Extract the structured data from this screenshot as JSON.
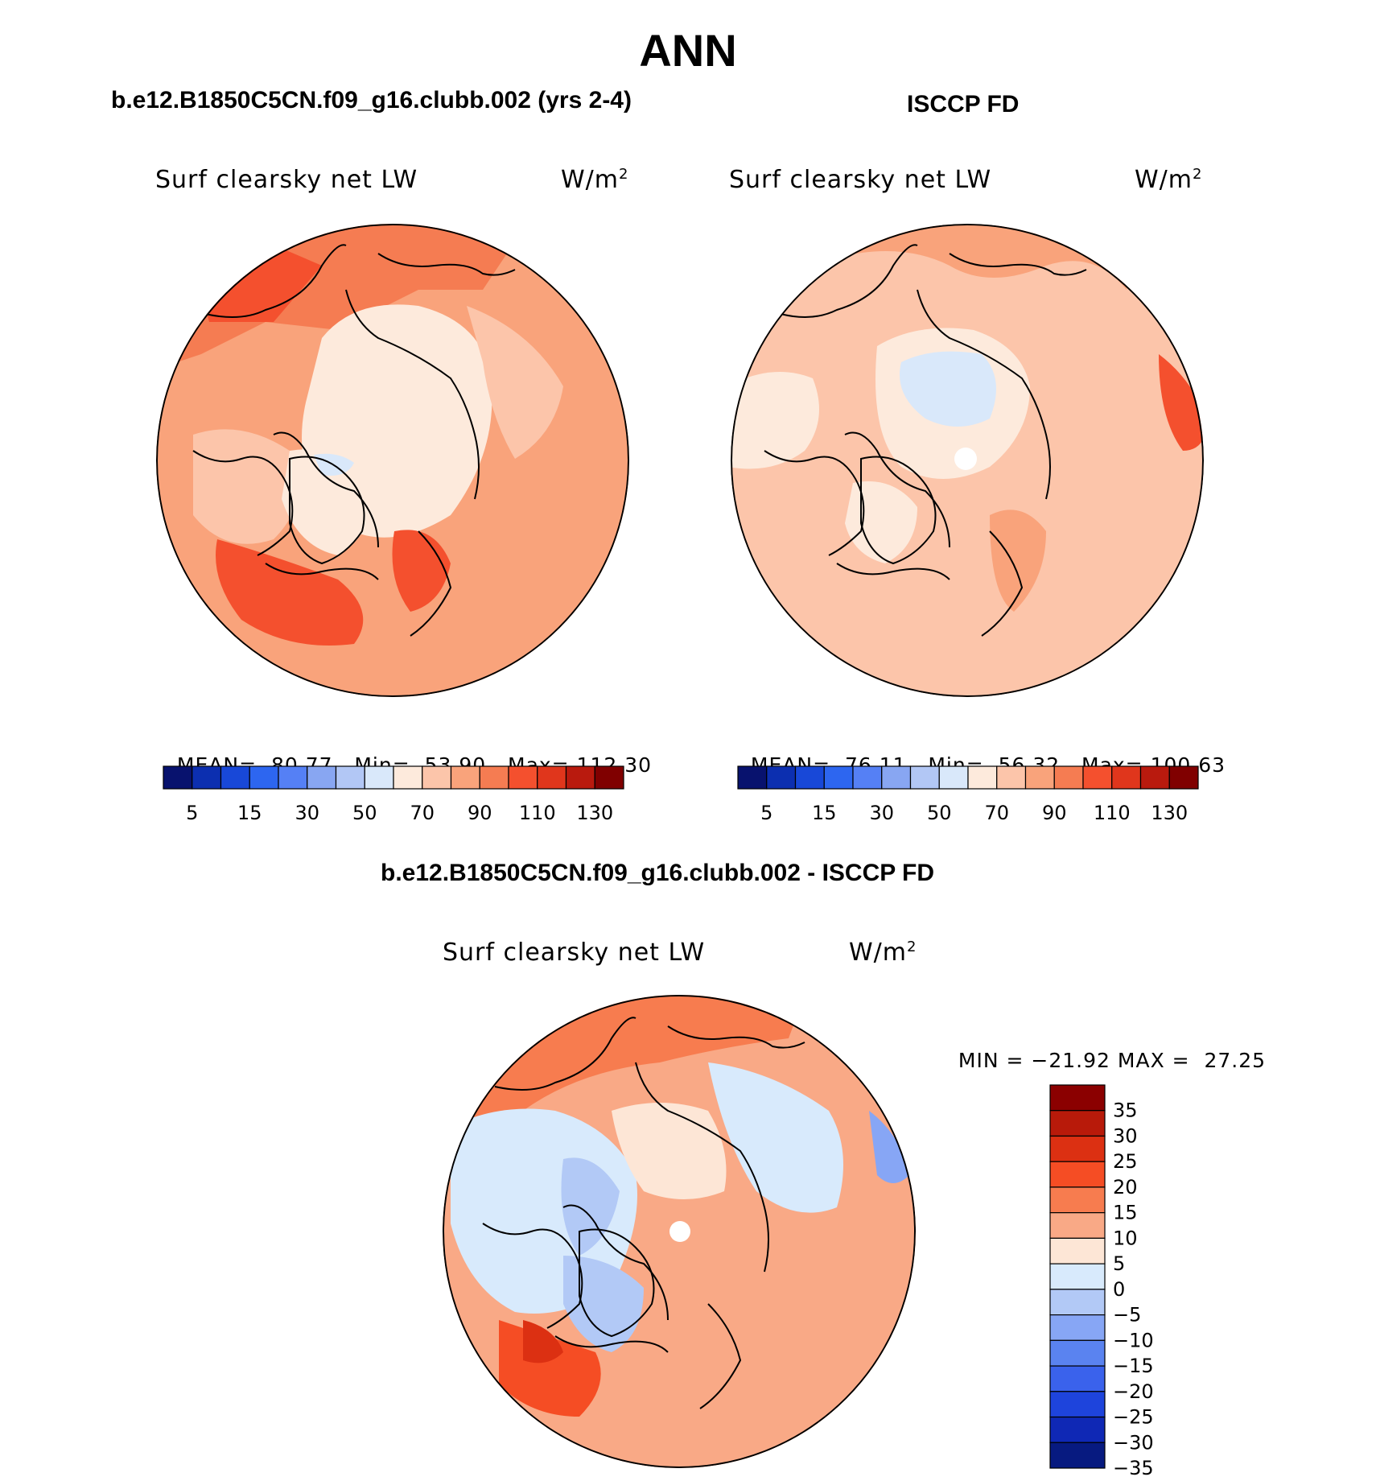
{
  "title": "ANN",
  "panels": [
    {
      "case_title": "b.e12.B1850C5CN.f09_g16.clubb.002 (yrs 2-4)",
      "variable_label": "Surf clearsky net LW",
      "units": "W/m",
      "units_exp": "2",
      "stats": {
        "mean_label": "MEAN=",
        "mean": "80.77",
        "min_label": "Min=",
        "min": "53.90",
        "max_label": "Max=",
        "max": "112.30"
      }
    },
    {
      "case_title": "ISCCP FD",
      "variable_label": "Surf clearsky net LW",
      "units": "W/m",
      "units_exp": "2",
      "stats": {
        "mean_label": "MEAN=",
        "mean": "76.11",
        "min_label": "Min=",
        "min": "56.32",
        "max_label": "Max=",
        "max": "100.63"
      }
    }
  ],
  "diff_panel": {
    "case_title": "b.e12.B1850C5CN.f09_g16.clubb.002 - ISCCP FD",
    "variable_label": "Surf clearsky net LW",
    "units": "W/m",
    "units_exp": "2",
    "stats": {
      "min_label": "MIN =",
      "min": "−21.92",
      "max_label": "MAX =",
      "max": "27.25"
    }
  },
  "chart_data": [
    {
      "type": "heatmap",
      "projection": "north polar stereographic",
      "title": "b.e12.B1850C5CN.f09_g16.clubb.002 (yrs 2-4)",
      "variable": "Surf clearsky net LW",
      "units": "W/m2",
      "mean": 80.77,
      "min": 53.9,
      "max": 112.3,
      "colorbar_ticks": [
        "5",
        "15",
        "30",
        "50",
        "70",
        "90",
        "110",
        "130"
      ],
      "colorbar_colors": [
        "#08126e",
        "#0c2fb0",
        "#1848d8",
        "#2d66f0",
        "#5580f5",
        "#88a6f2",
        "#b2c7f5",
        "#d9e8fa",
        "#fdeadc",
        "#fcc5aa",
        "#f9a37b",
        "#f57c52",
        "#f4502e",
        "#e0361c",
        "#b91a0e",
        "#800000"
      ],
      "region_colors": {
        "arctic_ocean": "#fdeadc",
        "canada_arctic": "#fdeadc",
        "midlatitudes": "#f9a37b",
        "pacific": "#f57c52",
        "north_atlantic": "#f4502e"
      }
    },
    {
      "type": "heatmap",
      "projection": "north polar stereographic",
      "title": "ISCCP FD",
      "variable": "Surf clearsky net LW",
      "units": "W/m2",
      "mean": 76.11,
      "min": 56.32,
      "max": 100.63,
      "colorbar_ticks": [
        "5",
        "15",
        "30",
        "50",
        "70",
        "90",
        "110",
        "130"
      ],
      "colorbar_colors": [
        "#08126e",
        "#0c2fb0",
        "#1848d8",
        "#2d66f0",
        "#5580f5",
        "#88a6f2",
        "#b2c7f5",
        "#d9e8fa",
        "#fdeadc",
        "#fcc5aa",
        "#f9a37b",
        "#f57c52",
        "#f4502e",
        "#e0361c",
        "#b91a0e",
        "#800000"
      ],
      "region_colors": {
        "central_arctic": "#d9e8fa",
        "arctic_ocean": "#fdeadc",
        "midlatitudes": "#fcc5aa",
        "pacific": "#f9a37b",
        "east_siberia_edge": "#f4502e"
      }
    },
    {
      "type": "heatmap",
      "projection": "north polar stereographic",
      "title": "b.e12.B1850C5CN.f09_g16.clubb.002 - ISCCP FD",
      "variable": "Surf clearsky net LW",
      "units": "W/m2",
      "min": -21.92,
      "max": 27.25,
      "colorbar_ticks": [
        "35",
        "30",
        "25",
        "20",
        "15",
        "10",
        "5",
        "0",
        "−5",
        "−10",
        "−15",
        "−20",
        "−25",
        "−30",
        "−35"
      ],
      "colorbar_colors": [
        "#8b0000",
        "#b81a0a",
        "#dc3012",
        "#f54d24",
        "#f77c4f",
        "#f9a986",
        "#fde6d6",
        "#d8eafc",
        "#b2c9f6",
        "#87a6f5",
        "#5a83f0",
        "#3a62ec",
        "#1e44dc",
        "#0f28b5",
        "#071a80"
      ],
      "region_colors": {
        "pacific": "#f77c4f",
        "canada_arctic": "#b2c9f6",
        "central_arctic": "#fde6d6",
        "siberia": "#d8eafc",
        "north_atlantic": "#f54d24",
        "midlatitudes": "#f9a986"
      }
    }
  ]
}
